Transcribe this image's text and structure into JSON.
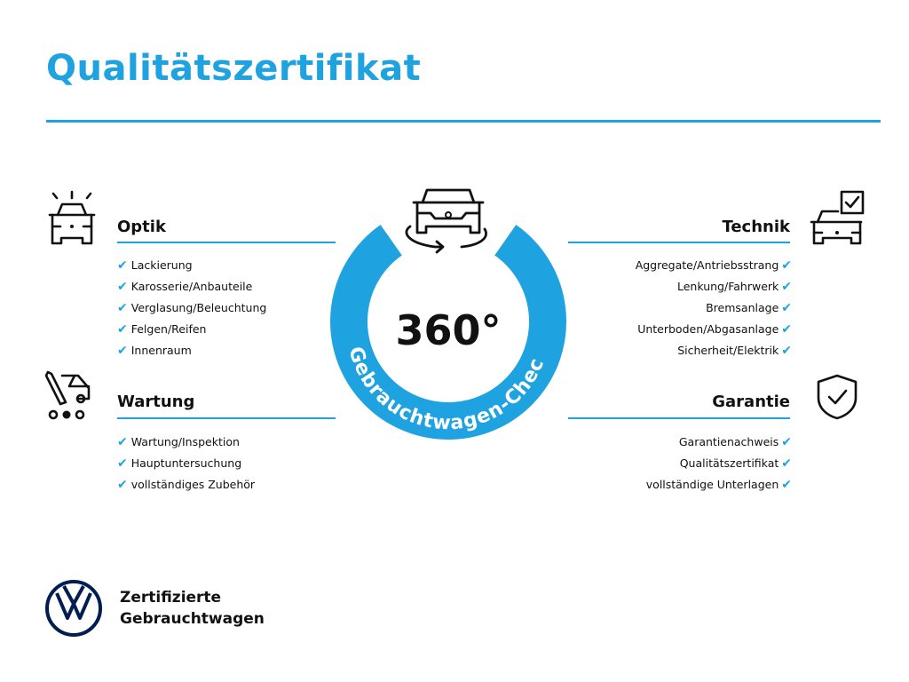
{
  "title": "Qualitätszertifikat",
  "center": {
    "degrees": "360°",
    "ring_text": "Gebrauchtwagen-Check"
  },
  "sections": {
    "optik": {
      "title": "Optik",
      "items": [
        "Lackierung",
        "Karosserie/Anbauteile",
        "Verglasung/Beleuchtung",
        "Felgen/Reifen",
        "Innenraum"
      ]
    },
    "wartung": {
      "title": "Wartung",
      "items": [
        "Wartung/Inspektion",
        "Hauptuntersuchung",
        "vollständiges Zubehör"
      ]
    },
    "technik": {
      "title": "Technik",
      "items": [
        "Aggregate/Antriebsstrang",
        "Lenkung/Fahrwerk",
        "Bremsanlage",
        "Unterboden/Abgasanlage",
        "Sicherheit/Elektrik"
      ]
    },
    "garantie": {
      "title": "Garantie",
      "items": [
        "Garantienachweis",
        "Qualitätszertifikat",
        "vollständige Unterlagen"
      ]
    }
  },
  "check_mark": "✔",
  "brand": {
    "line1": "Zertifizierte",
    "line2": "Gebrauchtwagen",
    "logo": "VW"
  },
  "colors": {
    "accent": "#1fa3e0",
    "brand_navy": "#001e50",
    "text": "#111111"
  }
}
